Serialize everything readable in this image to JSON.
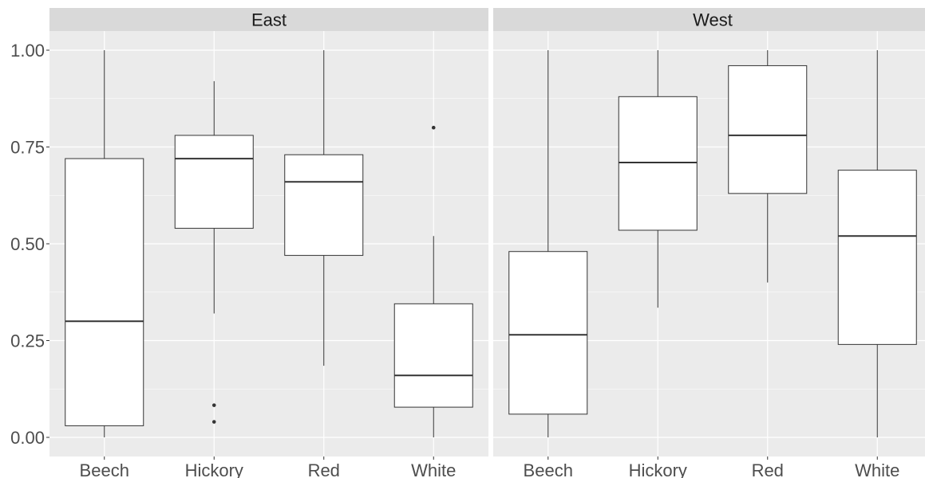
{
  "chart_data": {
    "type": "boxplot",
    "facet_by": "region",
    "categories": [
      "Beech",
      "Hickory",
      "Red",
      "White"
    ],
    "ylim": [
      -0.05,
      1.05
    ],
    "y_ticks": [
      "0.00",
      "0.25",
      "0.50",
      "0.75",
      "1.00"
    ],
    "grid": true,
    "xlabel": "",
    "ylabel": "",
    "panels": [
      {
        "label": "East",
        "boxes": [
          {
            "category": "Beech",
            "min": 0.0,
            "q1": 0.03,
            "median": 0.3,
            "q3": 0.72,
            "max": 1.0,
            "outliers": []
          },
          {
            "category": "Hickory",
            "min": 0.32,
            "q1": 0.54,
            "median": 0.72,
            "q3": 0.78,
            "max": 0.92,
            "outliers": [
              0.083,
              0.04
            ]
          },
          {
            "category": "Red",
            "min": 0.185,
            "q1": 0.47,
            "median": 0.66,
            "q3": 0.73,
            "max": 1.0,
            "outliers": []
          },
          {
            "category": "White",
            "min": 0.0,
            "q1": 0.078,
            "median": 0.16,
            "q3": 0.345,
            "max": 0.52,
            "outliers": [
              0.8
            ]
          }
        ]
      },
      {
        "label": "West",
        "boxes": [
          {
            "category": "Beech",
            "min": 0.0,
            "q1": 0.06,
            "median": 0.265,
            "q3": 0.48,
            "max": 1.0,
            "outliers": []
          },
          {
            "category": "Hickory",
            "min": 0.335,
            "q1": 0.535,
            "median": 0.71,
            "q3": 0.88,
            "max": 1.0,
            "outliers": []
          },
          {
            "category": "Red",
            "min": 0.4,
            "q1": 0.63,
            "median": 0.78,
            "q3": 0.96,
            "max": 1.0,
            "outliers": []
          },
          {
            "category": "White",
            "min": 0.0,
            "q1": 0.24,
            "median": 0.52,
            "q3": 0.69,
            "max": 1.0,
            "outliers": []
          }
        ]
      }
    ],
    "colors": {
      "panel_background": "#ebebeb",
      "strip_background": "#d9d9d9",
      "grid_major": "#ffffff",
      "box_fill": "#ffffff",
      "box_stroke": "#333333",
      "tick_text": "#4d4d4d",
      "strip_text": "#1a1a1a"
    }
  }
}
